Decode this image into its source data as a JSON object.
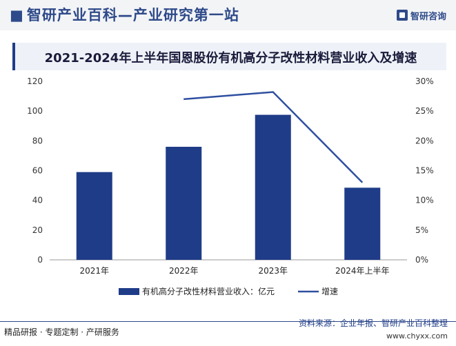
{
  "header": {
    "site_title": "智研产业百科—产业研究第一站",
    "logo_text": "智研咨询"
  },
  "chart_data": {
    "type": "bar",
    "title": "2021-2024年上半年国恩股份有机高分子改性材料营业收入及增速",
    "categories": [
      "2021年",
      "2022年",
      "2023年",
      "2024年上半年"
    ],
    "series": [
      {
        "name": "有机高分子改性材料营业收入：亿元",
        "type": "bar",
        "axis": "left",
        "values": [
          59,
          76,
          97.5,
          48.5
        ],
        "color": "#1f3c88"
      },
      {
        "name": "增速",
        "type": "line",
        "axis": "right",
        "values": [
          null,
          27.0,
          28.2,
          13.0
        ],
        "color": "#2e4fa0"
      }
    ],
    "y_left": {
      "min": 0,
      "max": 120,
      "ticks": [
        0,
        20,
        40,
        60,
        80,
        100,
        120
      ]
    },
    "y_right": {
      "min": 0,
      "max": 30,
      "ticks": [
        "0%",
        "5%",
        "10%",
        "15%",
        "20%",
        "25%",
        "30%"
      ]
    },
    "grid": false,
    "legend_position": "bottom"
  },
  "footer": {
    "left_text": "精品研报 · 专题定制 · 产研服务",
    "source_text": "资料来源：企业年报、智研产业百科整理",
    "url_text": "www.chyxx.com"
  }
}
